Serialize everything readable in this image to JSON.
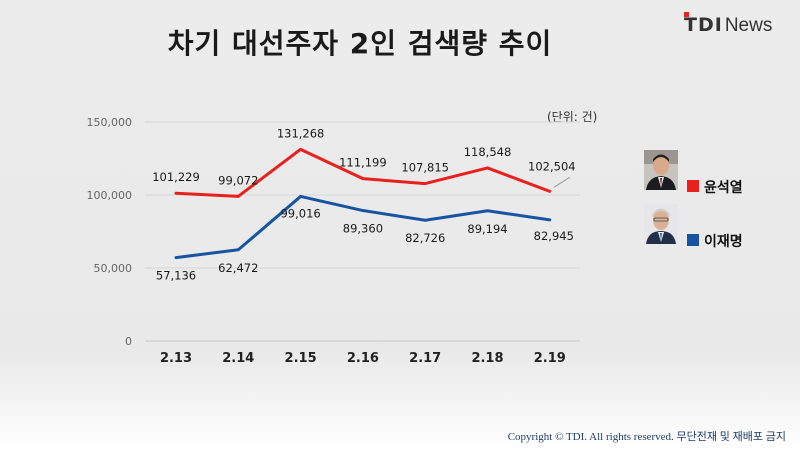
{
  "header": {
    "title": "차기 대선주자 2인 검색량 추이"
  },
  "logo": {
    "tdi": "TDI",
    "news": "News"
  },
  "unit_label": "(단위: 건)",
  "footer": {
    "copyright": "Copyright © TDI. All rights reserved. 무단전재 및 재배포 금지"
  },
  "colors": {
    "series_red": "#e8211c",
    "series_blue": "#1755a0"
  },
  "chart_data": {
    "type": "line",
    "categories": [
      "2.13",
      "2.14",
      "2.15",
      "2.16",
      "2.17",
      "2.18",
      "2.19"
    ],
    "ylim": [
      0,
      150000
    ],
    "yticks": [
      0,
      50000,
      100000,
      150000
    ],
    "ytick_labels": [
      "0",
      "50,000",
      "100,000",
      "150,000"
    ],
    "grid": true,
    "legend_position": "right",
    "series": [
      {
        "name": "윤석열",
        "color": "#e8211c",
        "values": [
          101229,
          99072,
          131268,
          111199,
          107815,
          118548,
          102504
        ],
        "labels": [
          "101,229",
          "99,072",
          "131,268",
          "111,199",
          "107,815",
          "118,548",
          "102,504"
        ]
      },
      {
        "name": "이재명",
        "color": "#1755a0",
        "values": [
          57136,
          62472,
          99016,
          89360,
          82726,
          89194,
          82945
        ],
        "labels": [
          "57,136",
          "62,472",
          "99,016",
          "89,360",
          "82,726",
          "89,194",
          "82,945"
        ]
      }
    ]
  }
}
